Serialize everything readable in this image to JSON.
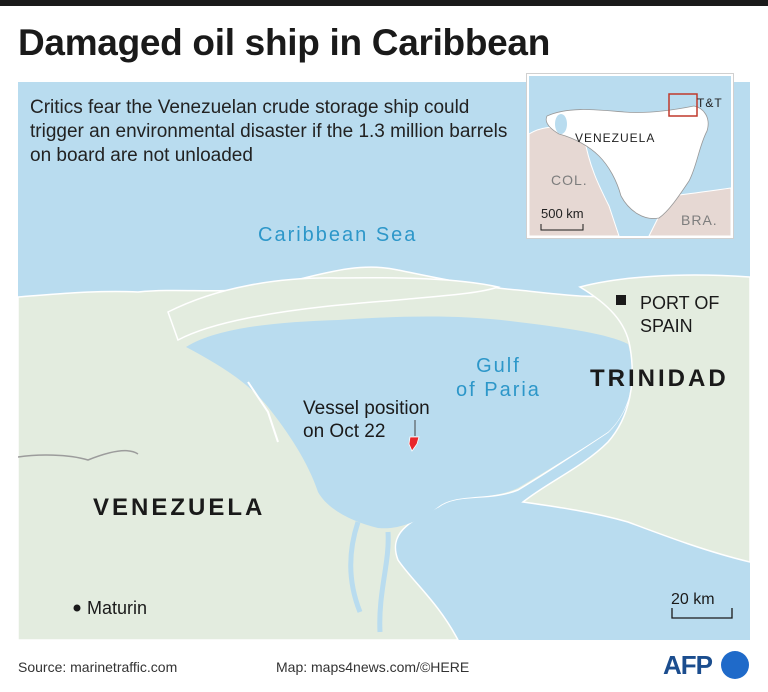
{
  "header": {
    "title": "Damaged oil ship in Caribbean",
    "subtitle": "Critics fear the Venezuelan crude storage ship could trigger an environmental disaster if the 1.3 million barrels on board are not unloaded"
  },
  "map": {
    "sea_label": "Caribbean Sea",
    "gulf_label_line1": "Gulf",
    "gulf_label_line2": "of Paria",
    "country_venezuela": "VENEZUELA",
    "country_trinidad": "TRINIDAD",
    "city_port_of_spain_line1": "PORT OF",
    "city_port_of_spain_line2": "SPAIN",
    "city_maturin": "Maturin",
    "vessel_label_line1": "Vessel position",
    "vessel_label_line2": "on Oct 22",
    "scale_label": "20 km",
    "colors": {
      "water": "#b9dcef",
      "land": "#e3ecdf",
      "vessel": "#e8262b",
      "label_water": "#2d97c9"
    }
  },
  "inset": {
    "label_venezuela": "VENEZUELA",
    "label_col": "COL.",
    "label_bra": "BRA.",
    "label_tt": "T&T",
    "scale_label": "500 km",
    "colors": {
      "venezuela": "#ffffff",
      "neighbors": "#e6d8d3",
      "highlight_box": "#c0392b"
    }
  },
  "footer": {
    "source": "Source: marinetraffic.com",
    "map_credit": "Map: maps4news.com/©HERE",
    "logo_text": "AFP"
  }
}
